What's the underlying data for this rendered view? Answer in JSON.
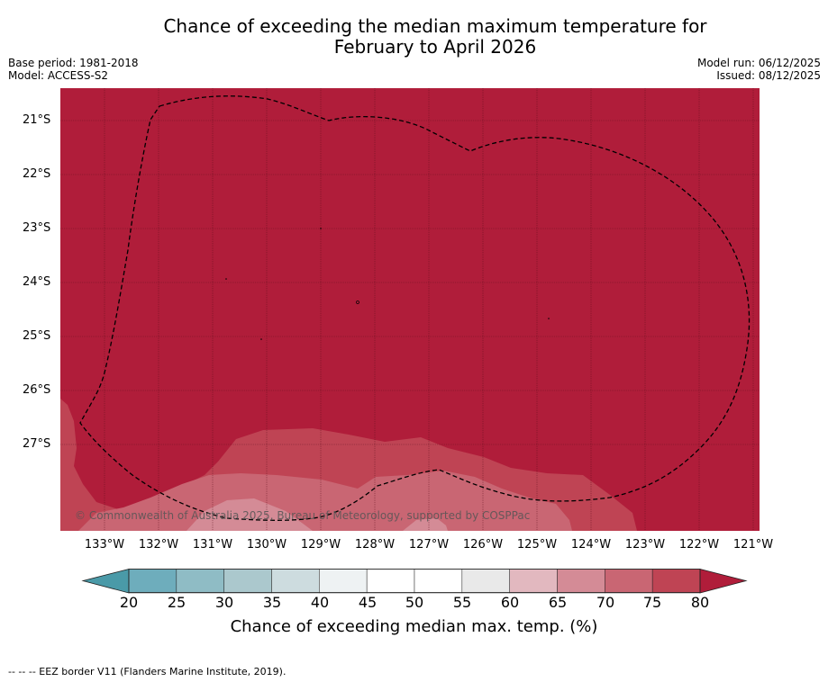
{
  "title_line1": "Chance of exceeding the median maximum temperature for",
  "title_line2": "February to April 2026",
  "base_period": "Base period: 1981-2018",
  "model": "Model: ACCESS-S2",
  "model_run": "Model run: 06/12/2025",
  "issued": "Issued: 08/12/2025",
  "copyright": "© Commonwealth of Australia 2025, Bureau of Meteorology, supported by COSPPac",
  "lat_labels": [
    "21°S",
    "22°S",
    "23°S",
    "24°S",
    "25°S",
    "26°S",
    "27°S"
  ],
  "lon_labels": [
    "133°W",
    "132°W",
    "131°W",
    "130°W",
    "129°W",
    "128°W",
    "127°W",
    "126°W",
    "125°W",
    "124°W",
    "123°W",
    "122°W",
    "121°W"
  ],
  "colorbar": {
    "ticks": [
      "20",
      "25",
      "30",
      "35",
      "40",
      "45",
      "50",
      "55",
      "60",
      "65",
      "70",
      "75",
      "80"
    ],
    "colors": [
      "#4a9aa8",
      "#6eadbc",
      "#8fbcc5",
      "#abc8cd",
      "#cddcdf",
      "#eef2f3",
      "#ffffff",
      "#ffffff",
      "#e9e9e9",
      "#e2b8bf",
      "#d48b96",
      "#c96673",
      "#bf4454",
      "#b01d3a"
    ],
    "label": "Chance of exceeding median max. temp. (%)"
  },
  "fill_colors": {
    "over80": "#b01d3a",
    "p75": "#bf4454",
    "p70": "#c96673",
    "p65": "#d48b96"
  },
  "eez_note": "--  --  -- EEZ border V11 (Flanders Marine Institute, 2019)."
}
